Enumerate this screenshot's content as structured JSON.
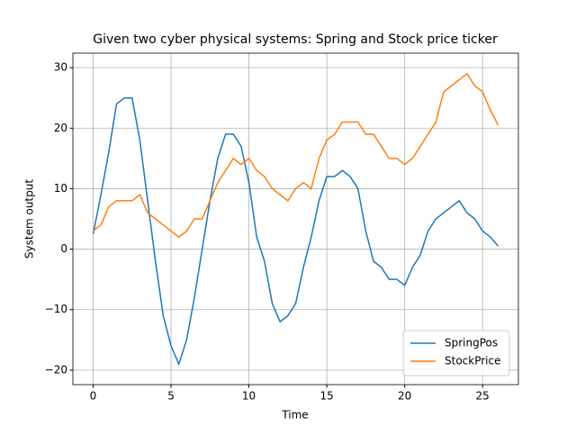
{
  "chart_data": {
    "type": "line",
    "title": "Given two cyber physical systems: Spring and Stock price ticker",
    "x_label": "Time",
    "y_label": "System output",
    "x": [
      0,
      0.5,
      1,
      1.5,
      2,
      2.5,
      3,
      3.5,
      4,
      4.5,
      5,
      5.5,
      6,
      6.5,
      7,
      7.5,
      8,
      8.5,
      9,
      9.5,
      10,
      10.5,
      11,
      11.5,
      12,
      12.5,
      13,
      13.5,
      14,
      14.5,
      15,
      15.5,
      16,
      16.5,
      17,
      17.5,
      18,
      18.5,
      19,
      19.5,
      20,
      20.5,
      21,
      21.5,
      22,
      22.5,
      23,
      23.5,
      24,
      24.5,
      25,
      25.5,
      26
    ],
    "series": [
      {
        "name": "SpringPos",
        "color": "#1f77b4",
        "values": [
          2.5,
          9,
          16,
          24,
          25,
          25,
          18,
          8,
          -2,
          -11,
          -16,
          -19,
          -15,
          -8,
          0,
          8,
          15,
          19,
          19,
          17,
          11,
          2,
          -2,
          -9,
          -12,
          -11,
          -9,
          -3,
          2,
          8,
          12,
          12,
          13,
          12,
          10,
          3,
          -2,
          -3,
          -5,
          -5,
          -6,
          -3,
          -1,
          3,
          5,
          6,
          7,
          8,
          6,
          5,
          3,
          2,
          0.5
        ]
      },
      {
        "name": "StockPrice",
        "color": "#ff7f0e",
        "values": [
          3,
          4,
          7,
          8,
          8,
          8,
          9,
          6,
          5,
          4,
          3,
          2,
          3,
          5,
          5,
          8,
          11,
          13,
          15,
          14,
          15,
          13,
          12,
          10,
          9,
          8,
          10,
          11,
          10,
          15,
          18,
          19,
          21,
          21,
          21,
          19,
          19,
          17,
          15,
          15,
          14,
          15,
          17,
          19,
          21,
          26,
          27,
          28,
          29,
          27,
          26,
          23,
          20.5
        ]
      }
    ],
    "xlim": [
      -1.3,
      27.3
    ],
    "ylim": [
      -22.4,
      32.4
    ],
    "xticks": [
      0,
      5,
      10,
      15,
      20,
      25
    ],
    "yticks": [
      {
        "value": -20,
        "label": "−20"
      },
      {
        "value": -10,
        "label": "−10"
      },
      0,
      10,
      20,
      30
    ],
    "grid": true,
    "legend": "lower right"
  }
}
